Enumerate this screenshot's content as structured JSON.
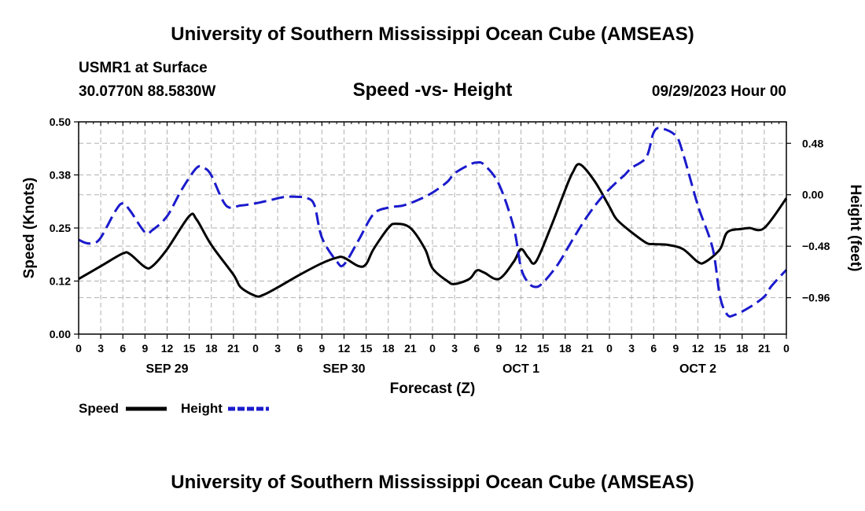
{
  "header": {
    "title": "University of Southern Mississippi Ocean Cube (AMSEAS)",
    "station": "USMR1 at Surface",
    "coords": "30.0770N  88.5830W",
    "chart_title": "Speed -vs- Height",
    "datetime": "09/29/2023 Hour 00"
  },
  "footer": {
    "title": "University of Southern Mississippi Ocean Cube (AMSEAS)"
  },
  "colors": {
    "speed": "#000000",
    "height": "#1a1acc",
    "grid": "#b0b0b0"
  },
  "chart_data": {
    "type": "line",
    "title": "Speed -vs- Height",
    "xlabel": "Forecast (Z)",
    "ylabel": "Speed (Knots)",
    "y2label": "Height (feet)",
    "xlim": [
      0,
      96
    ],
    "ylim": [
      0,
      0.5
    ],
    "y2lim": [
      -1.3,
      0.68
    ],
    "yticks": [
      0.0,
      0.125,
      0.25,
      0.375,
      0.5
    ],
    "ytick_labels": [
      "0.00",
      "0.12",
      "0.25",
      "0.38",
      "0.50"
    ],
    "y2ticks": [
      -0.96,
      -0.48,
      0.0,
      0.48
    ],
    "y2tick_labels": [
      "−0.96",
      "−0.48",
      "0.00",
      "0.48"
    ],
    "xticks": [
      0,
      3,
      6,
      9,
      12,
      15,
      18,
      21,
      24,
      27,
      30,
      33,
      36,
      39,
      42,
      45,
      48,
      51,
      54,
      57,
      60,
      63,
      66,
      69,
      72,
      75,
      78,
      81,
      84,
      87,
      90,
      93,
      96
    ],
    "xtick_labels": [
      "0",
      "3",
      "6",
      "9",
      "12",
      "15",
      "18",
      "21",
      "0",
      "3",
      "6",
      "9",
      "12",
      "15",
      "18",
      "21",
      "0",
      "3",
      "6",
      "9",
      "12",
      "15",
      "18",
      "21",
      "0",
      "3",
      "6",
      "9",
      "12",
      "15",
      "18",
      "21",
      "0"
    ],
    "date_labels": [
      {
        "hour": 12,
        "label": "SEP 29"
      },
      {
        "hour": 36,
        "label": "SEP 30"
      },
      {
        "hour": 60,
        "label": "OCT 1"
      },
      {
        "hour": 84,
        "label": "OCT 2"
      }
    ],
    "grid": true,
    "legend": {
      "placement": "bottom-left",
      "entries": [
        "Speed",
        "Height"
      ]
    },
    "series": [
      {
        "name": "Speed",
        "axis": "left",
        "style": "solid",
        "x": [
          0,
          3,
          6,
          7,
          9,
          10,
          12,
          15,
          16,
          18,
          21,
          22,
          24,
          25,
          27,
          30,
          33,
          35,
          36,
          38,
          39,
          40,
          42,
          43,
          45,
          47,
          48,
          50,
          51,
          53,
          54,
          55,
          57,
          59,
          60,
          61,
          62,
          64,
          66,
          67,
          68,
          70,
          72,
          73,
          75,
          77,
          78,
          80,
          82,
          84,
          85,
          87,
          88,
          90,
          91,
          93,
          96
        ],
        "values": [
          0.13,
          0.16,
          0.19,
          0.188,
          0.158,
          0.16,
          0.2,
          0.278,
          0.27,
          0.21,
          0.14,
          0.11,
          0.09,
          0.092,
          0.11,
          0.14,
          0.167,
          0.18,
          0.18,
          0.16,
          0.165,
          0.2,
          0.25,
          0.26,
          0.25,
          0.2,
          0.155,
          0.125,
          0.118,
          0.13,
          0.15,
          0.145,
          0.13,
          0.17,
          0.2,
          0.18,
          0.17,
          0.25,
          0.34,
          0.38,
          0.4,
          0.36,
          0.3,
          0.27,
          0.24,
          0.215,
          0.212,
          0.21,
          0.2,
          0.17,
          0.17,
          0.2,
          0.24,
          0.248,
          0.25,
          0.25,
          0.32
        ]
      },
      {
        "name": "Height",
        "axis": "right",
        "style": "dashed",
        "x": [
          0,
          1,
          2,
          3,
          5,
          6,
          7,
          9,
          10,
          12,
          14,
          16,
          17,
          18,
          20,
          22,
          24,
          26,
          28,
          30,
          31,
          32,
          33,
          35,
          36,
          38,
          40,
          42,
          44,
          46,
          48,
          50,
          51,
          53,
          54,
          55,
          57,
          59,
          60,
          61,
          62,
          63,
          65,
          67,
          69,
          71,
          73,
          74,
          75,
          77,
          78,
          79,
          81,
          82,
          84,
          86,
          87,
          88,
          89,
          91,
          93,
          94,
          96
        ],
        "values": [
          -0.42,
          -0.45,
          -0.45,
          -0.4,
          -0.15,
          -0.08,
          -0.15,
          -0.35,
          -0.33,
          -0.2,
          0.05,
          0.25,
          0.25,
          0.18,
          -0.1,
          -0.1,
          -0.08,
          -0.05,
          -0.02,
          -0.02,
          -0.03,
          -0.1,
          -0.4,
          -0.62,
          -0.65,
          -0.42,
          -0.18,
          -0.12,
          -0.1,
          -0.05,
          0.02,
          0.12,
          0.2,
          0.28,
          0.3,
          0.28,
          0.1,
          -0.3,
          -0.68,
          -0.82,
          -0.86,
          -0.82,
          -0.65,
          -0.42,
          -0.2,
          -0.02,
          0.12,
          0.18,
          0.25,
          0.35,
          0.58,
          0.62,
          0.55,
          0.38,
          -0.1,
          -0.5,
          -0.95,
          -1.12,
          -1.12,
          -1.05,
          -0.95,
          -0.85,
          -0.7
        ]
      }
    ]
  }
}
